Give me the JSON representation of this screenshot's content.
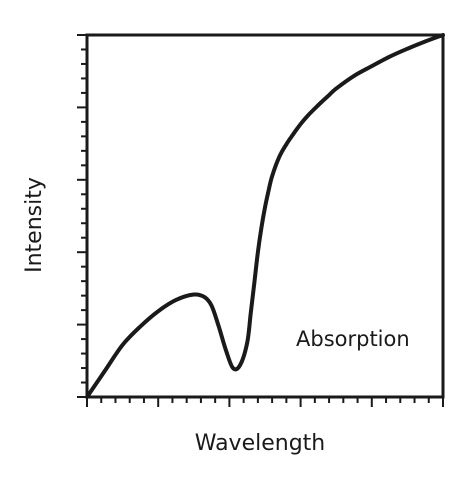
{
  "chart_data": {
    "type": "line",
    "title": "",
    "xlabel": "Wavelength",
    "ylabel": "Intensity",
    "annotations": [
      {
        "text": "Absorption"
      }
    ],
    "xlim": [
      0,
      100
    ],
    "ylim": [
      0,
      100
    ],
    "grid": false,
    "legend": "none",
    "x_ticks": {
      "major": [
        0,
        20,
        40,
        60,
        80,
        100
      ],
      "minor_step": 4
    },
    "y_ticks": {
      "major": [
        0,
        20,
        40,
        60,
        80,
        100
      ],
      "minor_step": 4
    },
    "series": [
      {
        "color": "#1a1a1a",
        "x": [
          0,
          5,
          10,
          15,
          20,
          25,
          30,
          33,
          35,
          37,
          39,
          41,
          43,
          45,
          46,
          47,
          48,
          49,
          50,
          51,
          52,
          54,
          56,
          58,
          60,
          62,
          64,
          66,
          68,
          70,
          75,
          80,
          85,
          90,
          95,
          100
        ],
        "y": [
          0,
          7.2,
          14.4,
          19.5,
          23.7,
          26.8,
          28.3,
          27.6,
          25.2,
          19.5,
          13.0,
          8.0,
          8.8,
          15.0,
          23.2,
          31.5,
          40.0,
          46.8,
          52.4,
          57.0,
          61.0,
          66.3,
          69.8,
          72.7,
          75.4,
          77.7,
          79.7,
          81.6,
          83.4,
          85.2,
          88.7,
          91.4,
          94.0,
          96.2,
          98.2,
          100
        ]
      }
    ]
  }
}
